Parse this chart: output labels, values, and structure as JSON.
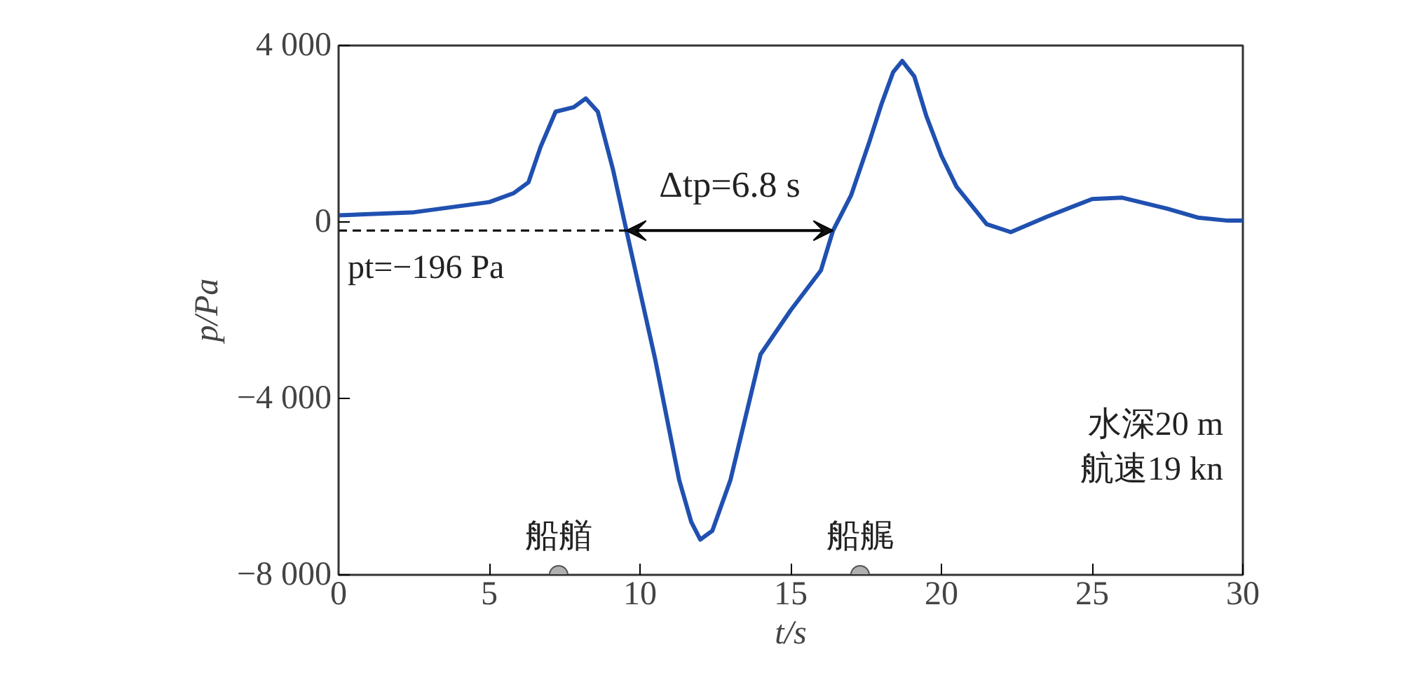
{
  "chart_data": {
    "type": "line",
    "xlabel": "t/s",
    "ylabel": "p/Pa",
    "xlim": [
      0,
      30
    ],
    "ylim": [
      -8000,
      4000
    ],
    "xticks": [
      0,
      5,
      10,
      15,
      20,
      25,
      30
    ],
    "yticks": [
      {
        "value": 4000,
        "label": "4 000"
      },
      0,
      {
        "value": -4000,
        "label": "−4 000"
      },
      {
        "value": -8000,
        "label": "−8 000"
      }
    ],
    "grid": false,
    "line_style": "solid",
    "series": [
      {
        "color": "#2050b0",
        "x": [
          0,
          2.5,
          5,
          5.8,
          6.3,
          6.7,
          7.2,
          7.8,
          8.2,
          8.6,
          9.1,
          9.6,
          10.5,
          11.3,
          11.7,
          12,
          12.4,
          13,
          14,
          15,
          16,
          16.4,
          17,
          17.6,
          18,
          18.4,
          18.7,
          19.1,
          19.5,
          20,
          20.5,
          21.5,
          22.3,
          23.5,
          25,
          26,
          27.5,
          28.5,
          29.5,
          30
        ],
        "values": [
          150,
          220,
          450,
          650,
          900,
          1700,
          2500,
          2600,
          2800,
          2500,
          1200,
          -350,
          -3100,
          -5850,
          -6800,
          -7200,
          -7000,
          -5850,
          -3000,
          -2000,
          -1100,
          -200,
          600,
          1800,
          2650,
          3400,
          3650,
          3300,
          2400,
          1500,
          800,
          -50,
          -230,
          120,
          520,
          550,
          300,
          100,
          30,
          30
        ]
      }
    ],
    "ref_lines": [
      {
        "axis": "y",
        "value": -196,
        "label": "pt=−196 Pa",
        "color": "#000000",
        "line_style": "dashed"
      }
    ],
    "annotations": [
      "Δtp=6.8 s",
      {
        "text": "船艏",
        "x": 7.3,
        "y": -8000
      },
      {
        "text": "船艉",
        "x": 17.3,
        "y": -8000
      },
      "水深20 m",
      "航速19 kn"
    ]
  }
}
